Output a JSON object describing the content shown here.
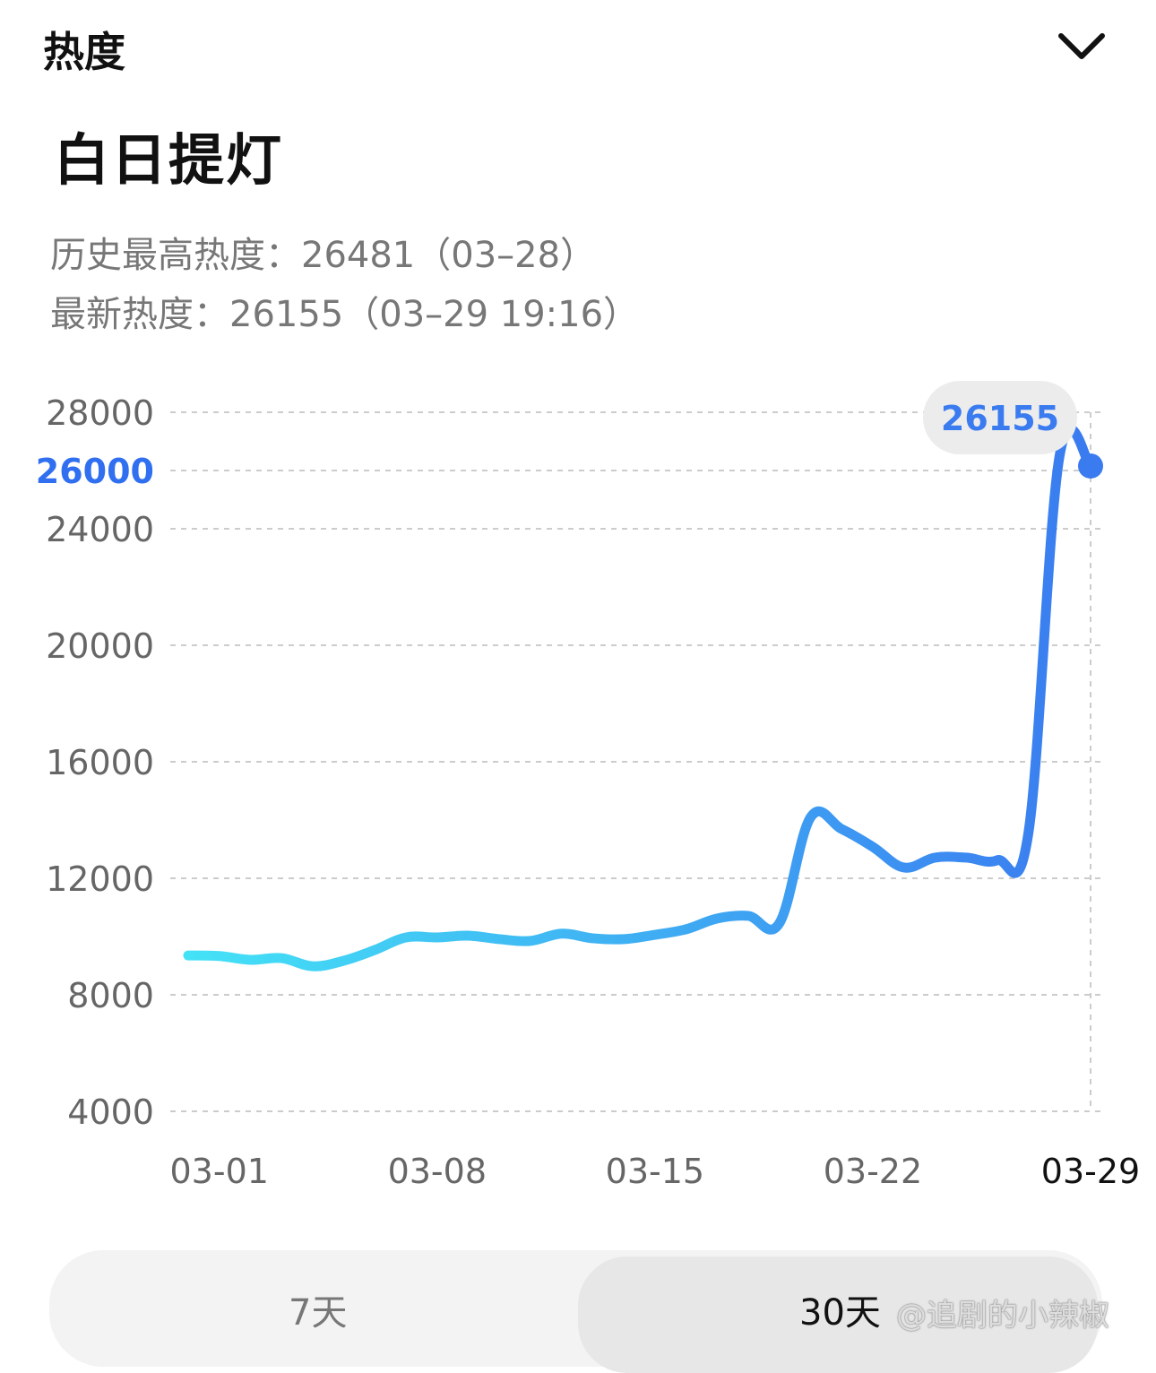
{
  "header": {
    "title": "热度"
  },
  "title": "白日提灯",
  "stats": [
    {
      "label": "历史最高热度：",
      "value": 26481,
      "note": "（03–28）"
    },
    {
      "label": "最新热度：",
      "value": 26155,
      "note": "（03–29 19:16）"
    }
  ],
  "chart_data": {
    "type": "line",
    "x": [
      "02-28",
      "03-01",
      "03-02",
      "03-03",
      "03-04",
      "03-05",
      "03-06",
      "03-07",
      "03-08",
      "03-09",
      "03-10",
      "03-11",
      "03-12",
      "03-13",
      "03-14",
      "03-15",
      "03-16",
      "03-17",
      "03-18",
      "03-19",
      "03-20",
      "03-21",
      "03-22",
      "03-23",
      "03-24",
      "03-25",
      "03-26",
      "03-27",
      "03-28",
      "03-29"
    ],
    "series": [
      {
        "color": "#3a7bf0",
        "gradient_start": "#44e2f6",
        "values": [
          9350,
          9330,
          9200,
          9260,
          8980,
          9170,
          9540,
          9970,
          9970,
          10030,
          9910,
          9850,
          10100,
          9940,
          9910,
          10060,
          10250,
          10620,
          10710,
          10460,
          14090,
          13690,
          13080,
          12370,
          12710,
          12710,
          12620,
          13540,
          26481,
          26155
        ]
      }
    ],
    "xticks": [
      "03-01",
      "03-08",
      "03-15",
      "03-22",
      "03-29"
    ],
    "ylim": [
      4000,
      28000
    ],
    "yticks": [
      4000,
      8000,
      12000,
      16000,
      20000,
      24000,
      28000
    ],
    "highlight_ytick": 26000,
    "highlight_color": "#2f6ff0",
    "grid": true
  },
  "tabs": [
    "7天",
    "30天"
  ],
  "active_tab": 1,
  "watermark": "@追剧的小辣椒"
}
